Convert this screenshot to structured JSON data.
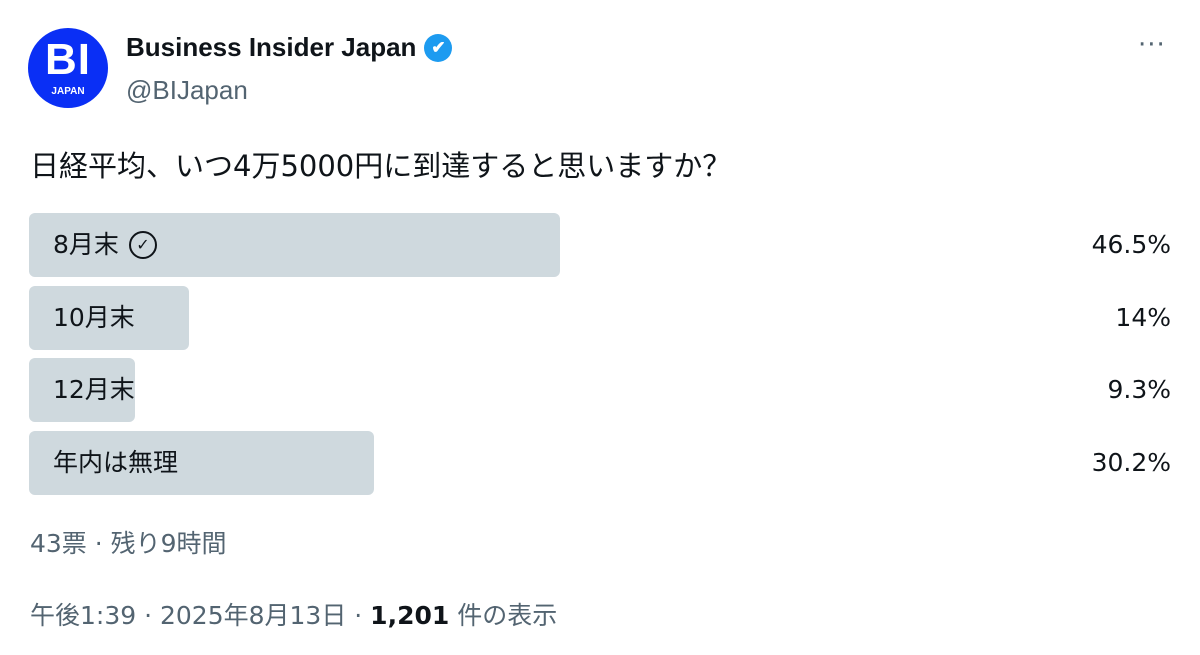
{
  "account": {
    "name": "Business Insider Japan",
    "handle": "@BIJapan",
    "avatar_text": "BI",
    "avatar_sub": "JAPAN",
    "verified": true,
    "brand_color": "#0a2ff5"
  },
  "question": "日経平均、いつ4万5000円に到達すると思いますか？",
  "poll": {
    "options": [
      {
        "label": "8月末",
        "percent": "46.5%",
        "value": 46.5,
        "selected": true
      },
      {
        "label": "10月末",
        "percent": "14%",
        "value": 14
      },
      {
        "label": "12月末",
        "percent": "9.3%",
        "value": 9.3
      },
      {
        "label": "年内は無理",
        "percent": "30.2%",
        "value": 30.2
      }
    ],
    "status": "43票 · 残り9時間",
    "bar_color": "#cfd9de"
  },
  "footer": {
    "time": "午後1:39 · 2025年8月13日 · ",
    "views": "1,201",
    "views_label": " 件の表示"
  },
  "more_label": "···"
}
